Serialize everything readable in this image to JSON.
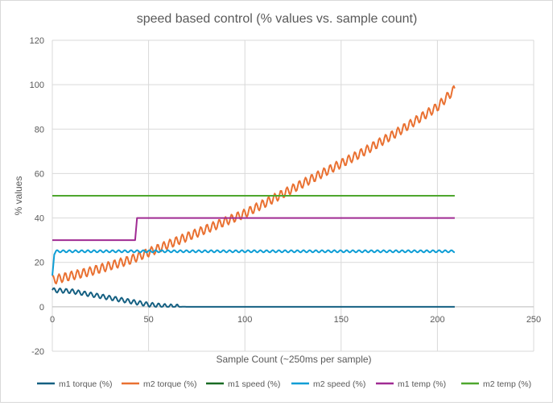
{
  "chart_data": {
    "type": "line",
    "title": "speed based control (% values vs. sample count)",
    "xlabel": "Sample Count (~250ms per sample)",
    "ylabel": "% values",
    "xlim": [
      0,
      250
    ],
    "ylim": [
      -20,
      120
    ],
    "xticks": [
      0,
      50,
      100,
      150,
      200,
      250
    ],
    "yticks": [
      -20,
      0,
      20,
      40,
      60,
      80,
      100,
      120
    ],
    "grid": true,
    "legend_position": "bottom",
    "series": [
      {
        "name": "m1 torque (%)",
        "color": "#156082",
        "points": [
          [
            0,
            7.5
          ],
          [
            10,
            7
          ],
          [
            20,
            5.5
          ],
          [
            30,
            4
          ],
          [
            40,
            2.5
          ],
          [
            50,
            1
          ],
          [
            60,
            0.2
          ],
          [
            70,
            0
          ],
          [
            100,
            0
          ],
          [
            150,
            0
          ],
          [
            200,
            0
          ],
          [
            209,
            0
          ]
        ],
        "ripple_amplitude": 1
      },
      {
        "name": "m2 torque (%)",
        "color": "#E97132",
        "points": [
          [
            0,
            12
          ],
          [
            20,
            16
          ],
          [
            40,
            21
          ],
          [
            60,
            28
          ],
          [
            80,
            35
          ],
          [
            100,
            42
          ],
          [
            120,
            51
          ],
          [
            140,
            60
          ],
          [
            160,
            69
          ],
          [
            180,
            79
          ],
          [
            200,
            90
          ],
          [
            209,
            98
          ]
        ],
        "ripple_amplitude": 2
      },
      {
        "name": "m1 speed (%)",
        "color": "#196B24",
        "points": [],
        "ripple_amplitude": 0
      },
      {
        "name": "m2 speed (%)",
        "color": "#0F9ED5",
        "points": [
          [
            0,
            14
          ],
          [
            1,
            24
          ],
          [
            2,
            25
          ],
          [
            209,
            25
          ]
        ],
        "ripple_amplitude": 0.5
      },
      {
        "name": "m1 temp (%)",
        "color": "#A02B93",
        "points": [
          [
            0,
            30
          ],
          [
            43,
            30
          ],
          [
            44,
            40
          ],
          [
            209,
            40
          ]
        ],
        "ripple_amplitude": 0
      },
      {
        "name": "m2 temp (%)",
        "color": "#4EA72E",
        "points": [
          [
            0,
            50
          ],
          [
            209,
            50
          ]
        ],
        "ripple_amplitude": 0
      }
    ]
  }
}
